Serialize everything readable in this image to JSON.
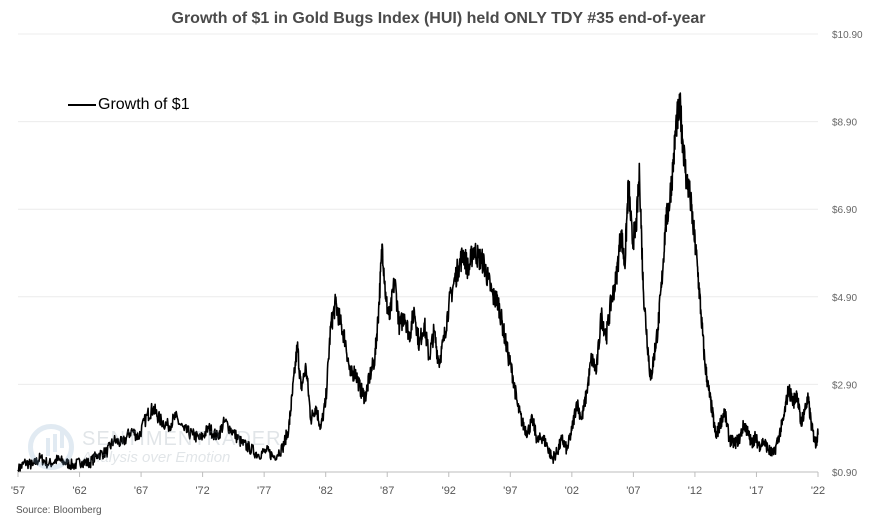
{
  "chart_data": {
    "type": "line",
    "title": "Growth of $1 in Gold Bugs Index (HUI) held ONLY TDY #35 end-of-year",
    "xlabel": "",
    "ylabel": "",
    "x_tick_labels": [
      "'57",
      "'62",
      "'67",
      "'72",
      "'77",
      "'82",
      "'87",
      "'92",
      "'97",
      "'02",
      "'07",
      "'12",
      "'17",
      "'22"
    ],
    "x_tick_years": [
      1957,
      1962,
      1967,
      1972,
      1977,
      1982,
      1987,
      1992,
      1997,
      2002,
      2007,
      2012,
      2017,
      2022
    ],
    "xlim": [
      1957,
      2022
    ],
    "y_tick_labels": [
      "$0.90",
      "$2.90",
      "$4.90",
      "$6.90",
      "$8.90",
      "$10.90"
    ],
    "y_tick_values": [
      0.9,
      2.9,
      4.9,
      6.9,
      8.9,
      10.9
    ],
    "ylim": [
      0.9,
      10.9
    ],
    "y_axis_position": "right",
    "grid": "horizontal",
    "legend": {
      "position": "top-left",
      "entries": [
        "Growth of $1"
      ]
    },
    "series": [
      {
        "name": "Growth of $1",
        "color": "#000000",
        "x": [
          1957.0,
          1957.6,
          1958.2,
          1958.8,
          1959.5,
          1960.2,
          1960.8,
          1961.5,
          1962.2,
          1962.8,
          1963.5,
          1964.2,
          1964.8,
          1965.5,
          1966.2,
          1966.8,
          1967.5,
          1968.0,
          1968.5,
          1969.2,
          1969.8,
          1970.5,
          1971.2,
          1971.8,
          1972.5,
          1973.2,
          1973.8,
          1974.5,
          1975.2,
          1975.8,
          1976.5,
          1977.2,
          1977.8,
          1978.5,
          1979.0,
          1979.3,
          1979.7,
          1980.0,
          1980.4,
          1980.8,
          1981.2,
          1981.6,
          1982.0,
          1982.4,
          1982.8,
          1983.2,
          1983.6,
          1984.0,
          1984.4,
          1984.8,
          1985.2,
          1985.6,
          1986.0,
          1986.3,
          1986.6,
          1986.9,
          1987.2,
          1987.6,
          1988.0,
          1988.4,
          1988.8,
          1989.2,
          1989.6,
          1990.0,
          1990.4,
          1990.8,
          1991.2,
          1991.6,
          1992.0,
          1992.4,
          1992.8,
          1993.2,
          1993.6,
          1994.0,
          1994.4,
          1994.8,
          1995.2,
          1995.6,
          1996.0,
          1996.4,
          1996.8,
          1997.2,
          1997.6,
          1998.0,
          1998.4,
          1998.8,
          1999.2,
          1999.6,
          2000.0,
          2000.4,
          2000.8,
          2001.2,
          2001.6,
          2002.0,
          2002.4,
          2002.8,
          2003.2,
          2003.6,
          2004.0,
          2004.4,
          2004.8,
          2005.2,
          2005.6,
          2006.0,
          2006.3,
          2006.6,
          2006.9,
          2007.2,
          2007.5,
          2007.8,
          2008.1,
          2008.4,
          2008.7,
          2009.0,
          2009.3,
          2009.6,
          2009.9,
          2010.2,
          2010.5,
          2010.8,
          2011.0,
          2011.3,
          2011.6,
          2011.9,
          2012.2,
          2012.5,
          2012.8,
          2013.1,
          2013.4,
          2013.7,
          2014.0,
          2014.4,
          2014.8,
          2015.2,
          2015.6,
          2016.0,
          2016.3,
          2016.6,
          2016.9,
          2017.2,
          2017.6,
          2018.0,
          2018.4,
          2018.8,
          2019.2,
          2019.6,
          2020.0,
          2020.3,
          2020.6,
          2020.9,
          2021.2,
          2021.5,
          2021.8,
          2022.0
        ],
        "values": [
          0.95,
          1.12,
          1.05,
          1.22,
          1.08,
          1.18,
          1.12,
          1.05,
          1.14,
          1.1,
          1.3,
          1.35,
          1.62,
          1.55,
          1.85,
          1.7,
          2.2,
          2.35,
          2.1,
          1.95,
          2.15,
          1.85,
          1.75,
          1.65,
          1.9,
          1.7,
          2.05,
          1.8,
          1.55,
          1.45,
          1.3,
          1.38,
          1.25,
          1.45,
          1.9,
          2.7,
          3.8,
          2.8,
          3.3,
          2.1,
          2.4,
          1.9,
          2.5,
          4.2,
          4.75,
          4.3,
          3.9,
          3.1,
          3.2,
          2.8,
          2.6,
          3.1,
          3.5,
          4.6,
          6.1,
          4.8,
          4.4,
          5.3,
          4.2,
          4.5,
          4.0,
          4.6,
          3.8,
          4.3,
          3.5,
          4.1,
          3.4,
          3.9,
          4.7,
          5.2,
          5.6,
          5.9,
          5.5,
          6.0,
          5.8,
          5.7,
          5.3,
          4.9,
          4.8,
          4.2,
          3.6,
          3.1,
          2.4,
          2.0,
          1.8,
          2.1,
          1.6,
          1.7,
          1.5,
          1.2,
          1.35,
          1.65,
          1.4,
          1.85,
          2.5,
          2.1,
          2.7,
          3.5,
          3.2,
          4.5,
          4.0,
          4.8,
          5.3,
          6.4,
          5.6,
          7.5,
          6.2,
          6.4,
          7.7,
          5.1,
          4.0,
          3.0,
          3.6,
          4.2,
          5.2,
          6.5,
          7.0,
          7.8,
          8.9,
          9.2,
          8.5,
          7.6,
          7.2,
          6.4,
          5.6,
          4.5,
          3.4,
          2.8,
          2.3,
          1.7,
          1.95,
          2.3,
          1.65,
          1.55,
          1.65,
          2.0,
          1.8,
          1.55,
          1.7,
          1.5,
          1.6,
          1.4,
          1.3,
          1.7,
          2.1,
          2.8,
          2.5,
          2.7,
          2.0,
          2.3,
          2.55,
          1.9,
          1.55,
          1.75
        ]
      }
    ],
    "source": "Source: Bloomberg"
  },
  "watermark": {
    "line1": "SENTIMENTRADER",
    "line2": "Analysis over Emotion"
  }
}
